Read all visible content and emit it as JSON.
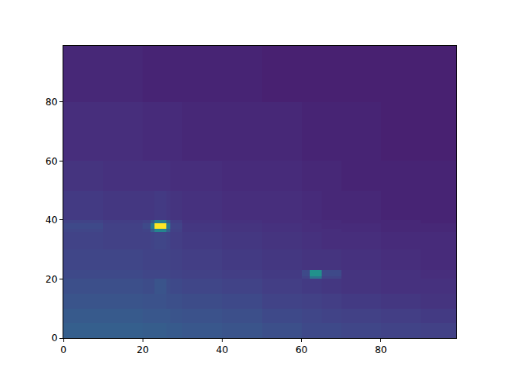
{
  "chart_data": {
    "type": "heatmap",
    "xlim": [
      0,
      99
    ],
    "ylim": [
      0,
      99
    ],
    "xticks": [
      0,
      20,
      40,
      60,
      80
    ],
    "yticks": [
      0,
      20,
      40,
      60,
      80
    ],
    "color": "Viridis",
    "zlim": [
      0,
      100
    ],
    "x_edges": [
      0,
      10,
      20,
      22,
      23,
      26,
      27,
      30,
      40,
      50,
      60,
      62,
      65,
      70,
      80,
      90,
      99
    ],
    "y_edges": [
      0,
      5,
      10,
      15,
      20,
      21,
      23,
      30,
      36,
      37,
      39,
      40,
      50,
      60,
      80,
      99
    ],
    "z": [
      [
        30,
        30,
        29,
        29,
        29,
        28,
        28,
        27,
        26,
        24,
        22,
        22,
        22,
        21,
        20,
        19
      ],
      [
        28,
        28,
        27,
        27,
        27,
        27,
        26,
        25,
        24,
        22,
        21,
        21,
        20,
        19,
        18,
        17
      ],
      [
        26,
        26,
        25,
        25,
        25,
        24,
        24,
        23,
        22,
        20,
        19,
        19,
        18,
        17,
        16,
        15
      ],
      [
        24,
        24,
        23,
        23,
        26,
        23,
        22,
        21,
        20,
        18,
        17,
        17,
        16,
        15,
        14,
        14
      ],
      [
        22,
        22,
        21,
        21,
        21,
        21,
        20,
        19,
        18,
        17,
        20,
        38,
        20,
        15,
        14,
        13
      ],
      [
        22,
        22,
        21,
        21,
        21,
        21,
        20,
        19,
        18,
        17,
        22,
        50,
        22,
        15,
        14,
        13
      ],
      [
        21,
        21,
        20,
        20,
        20,
        20,
        19,
        18,
        17,
        16,
        15,
        15,
        15,
        14,
        13,
        12
      ],
      [
        20,
        19,
        19,
        20,
        21,
        20,
        18,
        17,
        16,
        15,
        14,
        14,
        13,
        13,
        12,
        12
      ],
      [
        21,
        19,
        20,
        30,
        45,
        30,
        19,
        16,
        15,
        14,
        13,
        13,
        13,
        12,
        11,
        11
      ],
      [
        22,
        19,
        22,
        40,
        100,
        40,
        20,
        16,
        15,
        14,
        13,
        13,
        12,
        12,
        11,
        11
      ],
      [
        20,
        18,
        19,
        28,
        42,
        28,
        18,
        15,
        14,
        13,
        13,
        12,
        12,
        11,
        11,
        10
      ],
      [
        17,
        16,
        16,
        16,
        17,
        16,
        15,
        14,
        13,
        13,
        12,
        12,
        11,
        11,
        10,
        10
      ],
      [
        15,
        14,
        14,
        14,
        14,
        14,
        13,
        13,
        12,
        12,
        11,
        11,
        11,
        10,
        10,
        10
      ],
      [
        13,
        13,
        12,
        12,
        12,
        12,
        12,
        11,
        11,
        11,
        10,
        10,
        10,
        10,
        9,
        9
      ],
      [
        11,
        11,
        10,
        10,
        10,
        10,
        10,
        10,
        10,
        9,
        9,
        9,
        9,
        9,
        9,
        9
      ]
    ]
  }
}
